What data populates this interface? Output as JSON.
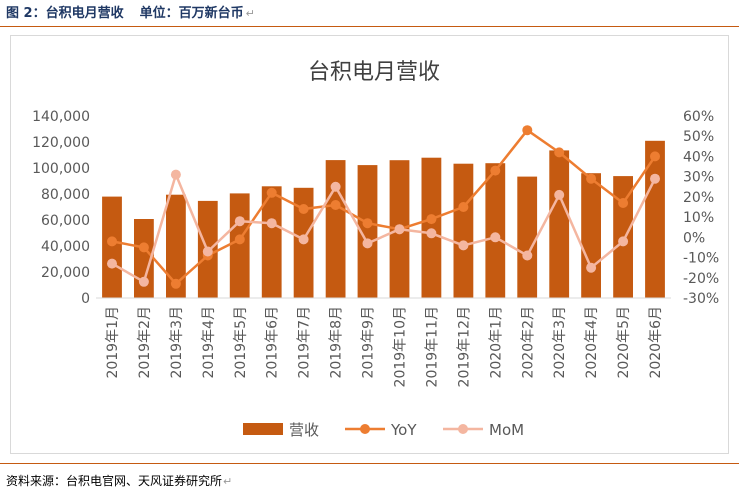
{
  "header": {
    "figure_caption": "图 2：台积电月营收",
    "unit_label": "单位：百万新台币",
    "return_mark": "↵"
  },
  "footer": {
    "source": "资料来源：台积电官网、天风证券研究所",
    "return_mark": "↵"
  },
  "colors": {
    "bar": "#c55a11",
    "yoy": "#ed7d31",
    "mom": "#f4b6a0",
    "rule": "#c55a11",
    "axis_text": "#595959",
    "grid": "#d9d9d9"
  },
  "chart_data": {
    "type": "bar",
    "title": "台积电月营收",
    "categories": [
      "2019年1月",
      "2019年2月",
      "2019年3月",
      "2019年4月",
      "2019年5月",
      "2019年6月",
      "2019年7月",
      "2019年8月",
      "2019年9月",
      "2019年10月",
      "2019年11月",
      "2019年12月",
      "2020年1月",
      "2020年2月",
      "2020年3月",
      "2020年4月",
      "2020年5月",
      "2020年6月"
    ],
    "series": [
      {
        "name": "营收",
        "type": "bar",
        "axis": "left",
        "values": [
          78000,
          60800,
          79500,
          74700,
          80500,
          85900,
          84800,
          106100,
          102200,
          106000,
          107900,
          103300,
          103700,
          93400,
          113500,
          96000,
          93800,
          120900
        ]
      },
      {
        "name": "YoY",
        "type": "line",
        "axis": "right",
        "values": [
          -2,
          -5,
          -23,
          -9,
          -1,
          22,
          14,
          16,
          7,
          4,
          9,
          15,
          33,
          53,
          42,
          29,
          17,
          40
        ]
      },
      {
        "name": "MoM",
        "type": "line",
        "axis": "right",
        "values": [
          -13,
          -22,
          31,
          -7,
          8,
          7,
          -1,
          25,
          -3,
          4,
          2,
          -4,
          0,
          -9,
          21,
          -15,
          -2,
          29
        ]
      }
    ],
    "ylim": [
      0,
      140000
    ],
    "y_ticks": [
      "0",
      "20,000",
      "40,000",
      "60,000",
      "80,000",
      "100,000",
      "120,000",
      "140,000"
    ],
    "y2lim": [
      -30,
      60
    ],
    "y2_ticks": [
      "-30%",
      "-20%",
      "-10%",
      "0%",
      "10%",
      "20%",
      "30%",
      "40%",
      "50%",
      "60%"
    ],
    "grid": false,
    "legend_position": "bottom",
    "legend": [
      "营收",
      "YoY",
      "MoM"
    ]
  }
}
